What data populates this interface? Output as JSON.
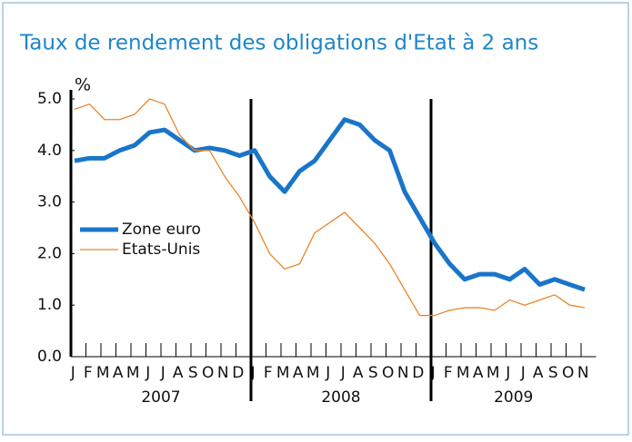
{
  "chart_data": {
    "type": "line",
    "title": "Taux de rendement des obligations d'Etat à 2 ans",
    "y_unit": "%",
    "categories": [
      "J",
      "F",
      "M",
      "A",
      "M",
      "J",
      "J",
      "A",
      "S",
      "O",
      "N",
      "D",
      "J",
      "F",
      "M",
      "A",
      "M",
      "J",
      "J",
      "A",
      "S",
      "O",
      "N",
      "D",
      "J",
      "F",
      "M",
      "A",
      "M",
      "J",
      "J",
      "A",
      "S",
      "O",
      "N"
    ],
    "years": [
      "2007",
      "2008",
      "2009"
    ],
    "series": [
      {
        "name": "Zone euro",
        "color": "#1a75c9",
        "values": [
          3.8,
          3.85,
          3.85,
          4.0,
          4.1,
          4.35,
          4.4,
          4.2,
          4.0,
          4.05,
          4.0,
          3.9,
          4.0,
          3.5,
          3.2,
          3.6,
          3.8,
          4.2,
          4.6,
          4.5,
          4.2,
          4.0,
          3.2,
          2.7,
          2.2,
          1.8,
          1.5,
          1.6,
          1.6,
          1.5,
          1.7,
          1.4,
          1.5,
          1.4,
          1.3
        ]
      },
      {
        "name": "Etats-Unis",
        "color": "#e8862a",
        "values": [
          4.8,
          4.9,
          4.6,
          4.6,
          4.7,
          5.0,
          4.9,
          4.3,
          4.0,
          4.0,
          3.5,
          3.1,
          2.6,
          2.0,
          1.7,
          1.8,
          2.4,
          2.6,
          2.8,
          2.5,
          2.2,
          1.8,
          1.3,
          0.8,
          0.8,
          0.9,
          0.95,
          0.95,
          0.9,
          1.1,
          1.0,
          1.1,
          1.2,
          1.0,
          0.95
        ]
      }
    ],
    "ylim": [
      0,
      5
    ],
    "yticks": [
      {
        "value": 0,
        "label": "0.0"
      },
      {
        "value": 1,
        "label": "1.0"
      },
      {
        "value": 2,
        "label": "2.0"
      },
      {
        "value": 3,
        "label": "3.0"
      },
      {
        "value": 4,
        "label": "4.0"
      },
      {
        "value": 5,
        "label": "5.0"
      }
    ],
    "legend": "left"
  }
}
